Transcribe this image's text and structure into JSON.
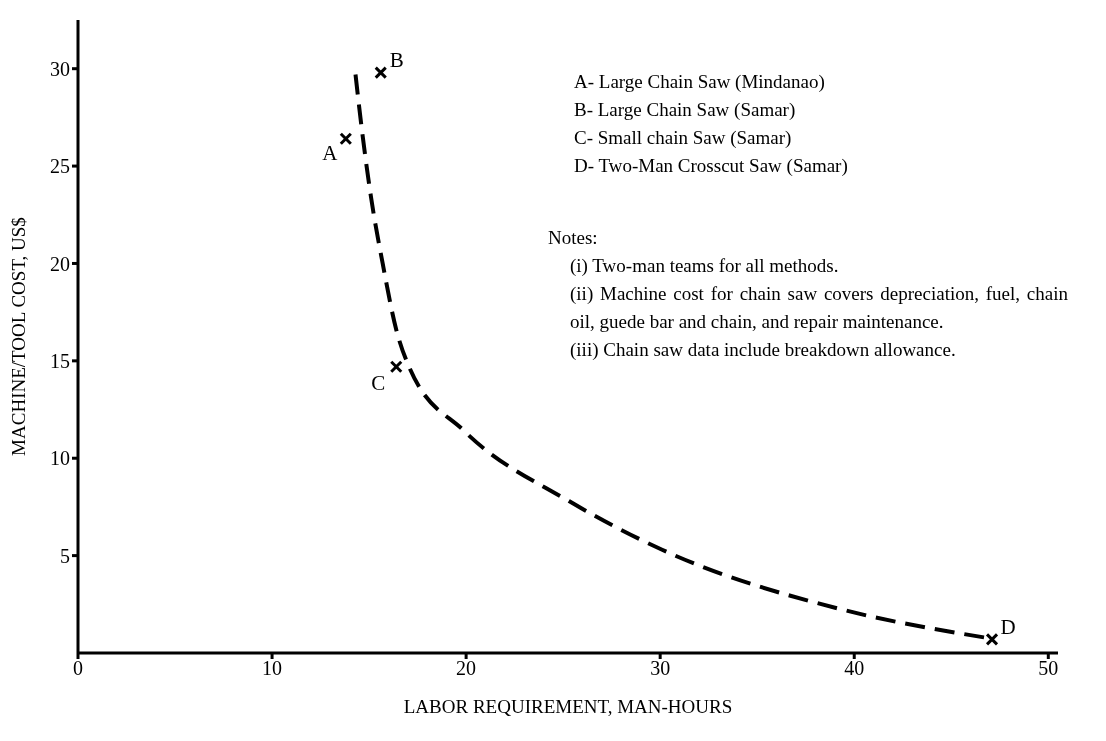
{
  "chart_data": {
    "type": "scatter",
    "xlabel": "LABOR REQUIREMENT, MAN-HOURS",
    "ylabel": "MACHINE/TOOL COST, US$",
    "xlim": [
      0,
      50.5
    ],
    "xticks": [
      0,
      10,
      20,
      30,
      40,
      50
    ],
    "ylim": [
      0,
      32.5
    ],
    "yticks": [
      5,
      10,
      15,
      20,
      25,
      30
    ],
    "grid": false,
    "series": [
      {
        "color": "#000000",
        "marker": "cross",
        "x": [
          13.8,
          15.6,
          16.4,
          47.1
        ],
        "values": [
          26.4,
          29.8,
          14.7,
          0.7
        ]
      },
      {
        "type": "line",
        "color": "#000000",
        "line_style": "dashed",
        "marker": "none",
        "x": [
          14.3,
          14.6,
          15.1,
          15.7,
          16.4,
          17.1,
          19.9,
          25.3,
          30.1,
          39.5,
          46.7
        ],
        "values": [
          29.7,
          27.1,
          23.4,
          20.0,
          16.6,
          14.6,
          11.4,
          7.8,
          5.3,
          2.2,
          0.8
        ]
      }
    ],
    "annotations": [
      {
        "text": "A",
        "x": 13.8,
        "y": 26.4
      },
      {
        "text": "B",
        "x": 15.6,
        "y": 29.8
      },
      {
        "text": "C",
        "x": 16.4,
        "y": 14.7
      },
      {
        "text": "D",
        "x": 47.1,
        "y": 0.7
      },
      "A- Large Chain Saw (Mindanao)",
      "B- Large Chain Saw (Samar)",
      "C- Small chain Saw (Samar)",
      "D- Two-Man Crosscut Saw (Samar)",
      "Notes:",
      "(i) Two-man teams for all methods.",
      "(ii) Machine cost for chain saw covers depreciation, fuel, chain oil, guede bar and chain, and repair maintenance.",
      "(iii) Chain saw data include breakdown allowance."
    ]
  }
}
